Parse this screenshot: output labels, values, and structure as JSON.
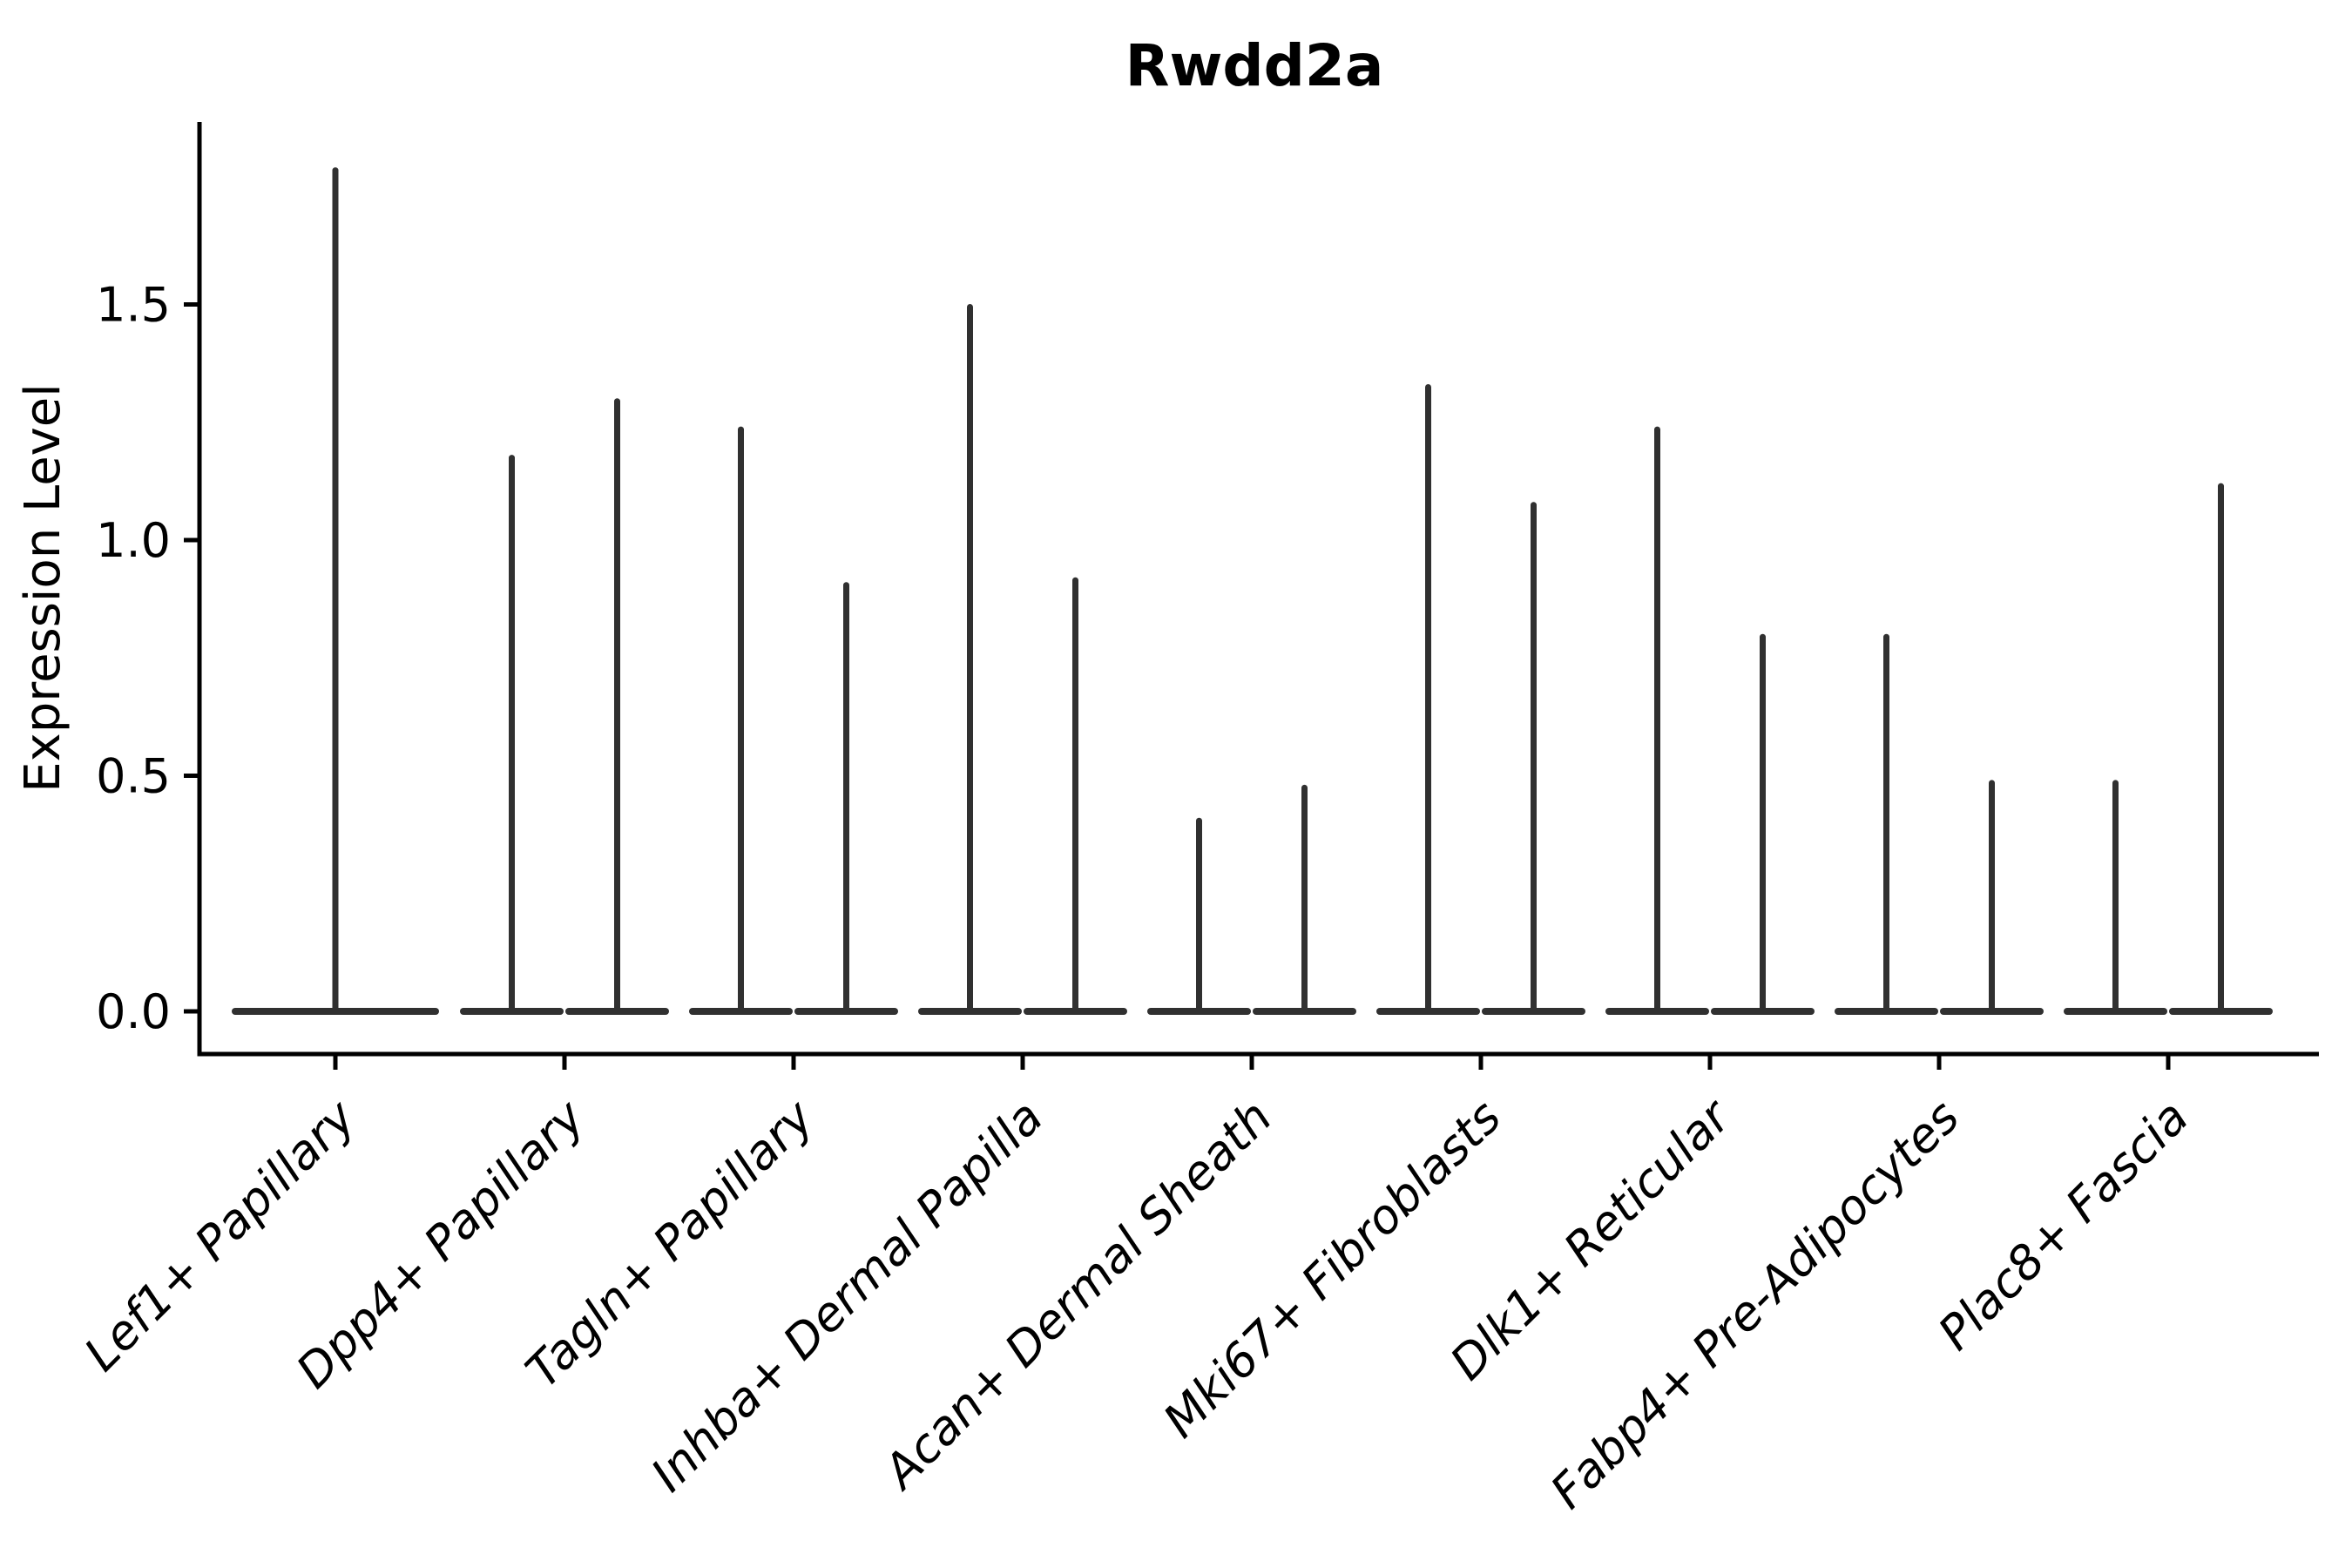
{
  "title": "Rwdd2a",
  "colors": {
    "background": "#ffffff",
    "axis": "#000000",
    "text": "#000000",
    "violin": "#303030"
  },
  "chart_data": {
    "type": "violin",
    "title": "Rwdd2a",
    "xlabel": "",
    "ylabel": "Expression Level",
    "ylim": [
      -0.09,
      1.89
    ],
    "yticks": [
      0.0,
      0.5,
      1.0,
      1.5
    ],
    "ytick_labels": [
      "0.0",
      "0.5",
      "1.0",
      "1.5"
    ],
    "baseline_value": 0.0,
    "categories": [
      "Lef1+ Papillary",
      "Dpp4+ Papillary",
      "Tagln+ Papillary",
      "Inhba+ Dermal Papilla",
      "Acan+ Dermal Sheath",
      "Mki67+ Fibroblasts",
      "Dlk1+ Reticular",
      "Fabp4+ Pre-Adipocytes",
      "Plac8+ Fascia"
    ],
    "groups": [
      {
        "category": "Lef1+ Papillary",
        "violins": [
          {
            "max": 1.79
          }
        ]
      },
      {
        "category": "Dpp4+ Papillary",
        "violins": [
          {
            "max": 1.18
          },
          {
            "max": 1.3
          }
        ]
      },
      {
        "category": "Tagln+ Papillary",
        "violins": [
          {
            "max": 1.24
          },
          {
            "max": 0.91
          }
        ]
      },
      {
        "category": "Inhba+ Dermal Papilla",
        "violins": [
          {
            "max": 1.5
          },
          {
            "max": 0.92
          }
        ]
      },
      {
        "category": "Acan+ Dermal Sheath",
        "violins": [
          {
            "max": 0.41
          },
          {
            "max": 0.48
          }
        ]
      },
      {
        "category": "Mki67+ Fibroblasts",
        "violins": [
          {
            "max": 1.33
          },
          {
            "max": 1.08
          }
        ]
      },
      {
        "category": "Dlk1+ Reticular",
        "violins": [
          {
            "max": 1.24
          },
          {
            "max": 0.8
          }
        ]
      },
      {
        "category": "Fabp4+ Pre-Adipocytes",
        "violins": [
          {
            "max": 0.8
          },
          {
            "max": 0.49
          }
        ]
      },
      {
        "category": "Plac8+ Fascia",
        "violins": [
          {
            "max": 0.49
          },
          {
            "max": 1.12
          }
        ]
      }
    ],
    "layout": {
      "grid": false,
      "legend": "none",
      "x_tick_rotation_deg": 45,
      "x_tick_labels_italic": true,
      "violin_style": "collapsed-to-spike (mass at 0 with thin peak to max)"
    }
  }
}
